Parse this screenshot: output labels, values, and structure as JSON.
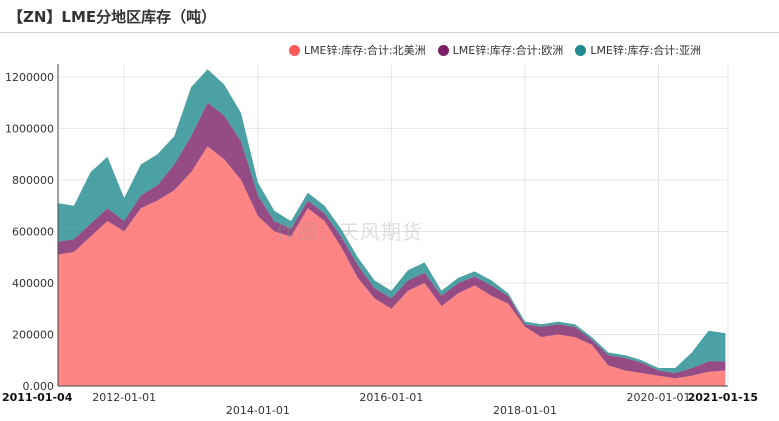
{
  "title": "【ZN】LME分地区库存（吨）",
  "watermark": "作图：天风期货",
  "colors": {
    "north_america": "#ff7070",
    "europe": "#7a1f66",
    "asia": "#1f8a8f",
    "grid": "#e6e6e6",
    "axis": "#444444"
  },
  "chart_data": {
    "type": "area",
    "stacked": true,
    "ylim": [
      0,
      1250000
    ],
    "y_ticks": [
      0,
      200000,
      400000,
      600000,
      800000,
      1000000,
      1200000
    ],
    "y_tick_labels": [
      "0.000",
      "200000",
      "400000",
      "600000",
      "800000",
      "1000000",
      "1200000"
    ],
    "x_range": [
      "2011-01-04",
      "2021-01-15"
    ],
    "x_ticks_upper": [
      {
        "date": "2011-01-04",
        "label": "2011-01-04",
        "bold": true
      },
      {
        "date": "2012-01-01",
        "label": "2012-01-01",
        "bold": false
      },
      {
        "date": "2016-01-01",
        "label": "2016-01-01",
        "bold": false
      },
      {
        "date": "2020-01-01",
        "label": "2020-01-01",
        "bold": false
      },
      {
        "date": "2021-01-15",
        "label": "2021-01-15",
        "bold": true
      }
    ],
    "x_ticks_lower": [
      {
        "date": "2014-01-01",
        "label": "2014-01-01"
      },
      {
        "date": "2018-01-01",
        "label": "2018-01-01"
      }
    ],
    "grid": true,
    "legend_position": "top-right",
    "x": [
      "2011-01",
      "2011-04",
      "2011-07",
      "2011-10",
      "2012-01",
      "2012-04",
      "2012-07",
      "2012-10",
      "2013-01",
      "2013-04",
      "2013-07",
      "2013-10",
      "2014-01",
      "2014-04",
      "2014-07",
      "2014-10",
      "2015-01",
      "2015-04",
      "2015-07",
      "2015-10",
      "2016-01",
      "2016-04",
      "2016-07",
      "2016-10",
      "2017-01",
      "2017-04",
      "2017-07",
      "2017-10",
      "2018-01",
      "2018-04",
      "2018-07",
      "2018-10",
      "2019-01",
      "2019-04",
      "2019-07",
      "2019-10",
      "2020-01",
      "2020-04",
      "2020-07",
      "2020-10",
      "2021-01"
    ],
    "series": [
      {
        "name": "LME锌:库存:合计:北美洲",
        "values": [
          510000,
          520000,
          580000,
          640000,
          600000,
          690000,
          720000,
          760000,
          830000,
          930000,
          880000,
          800000,
          660000,
          600000,
          580000,
          690000,
          640000,
          540000,
          420000,
          340000,
          300000,
          370000,
          400000,
          310000,
          360000,
          390000,
          350000,
          320000,
          230000,
          190000,
          200000,
          190000,
          160000,
          80000,
          60000,
          50000,
          40000,
          30000,
          40000,
          55000,
          60000
        ]
      },
      {
        "name": "LME锌:库存:合计:欧洲",
        "values": [
          50000,
          50000,
          50000,
          50000,
          40000,
          50000,
          60000,
          100000,
          140000,
          170000,
          170000,
          150000,
          80000,
          40000,
          30000,
          30000,
          30000,
          40000,
          50000,
          40000,
          40000,
          40000,
          40000,
          40000,
          40000,
          35000,
          40000,
          30000,
          10000,
          40000,
          40000,
          40000,
          20000,
          40000,
          50000,
          40000,
          20000,
          20000,
          30000,
          40000,
          35000
        ]
      },
      {
        "name": "LME锌:库存:合计:亚洲",
        "values": [
          150000,
          130000,
          200000,
          200000,
          90000,
          120000,
          120000,
          110000,
          190000,
          130000,
          120000,
          110000,
          50000,
          40000,
          30000,
          30000,
          30000,
          30000,
          30000,
          30000,
          30000,
          40000,
          40000,
          20000,
          20000,
          20000,
          20000,
          10000,
          10000,
          10000,
          10000,
          10000,
          10000,
          10000,
          10000,
          10000,
          10000,
          20000,
          60000,
          120000,
          110000
        ]
      }
    ]
  }
}
